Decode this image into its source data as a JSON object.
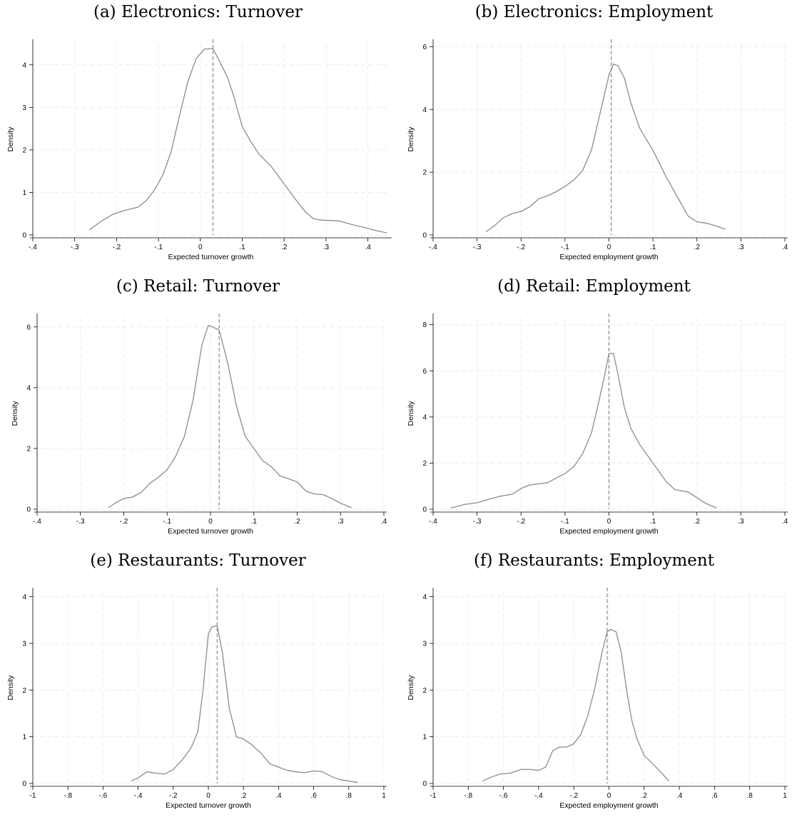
{
  "chart_data": [
    {
      "id": "a",
      "type": "line",
      "title": "(a) Electronics: Turnover",
      "xlabel": "Expected turnover growth",
      "ylabel": "Density",
      "xlim": [
        -0.4,
        0.45
      ],
      "ylim": [
        0,
        4.5
      ],
      "xticks": [
        -0.4,
        -0.3,
        -0.2,
        -0.1,
        0,
        0.1,
        0.2,
        0.3,
        0.4
      ],
      "xticklabels": [
        "-.4",
        "-.3",
        "-.2",
        "-.1",
        "0",
        ".1",
        ".2",
        ".3",
        ".4"
      ],
      "yticks": [
        0,
        1,
        2,
        3,
        4
      ],
      "yticklabels": [
        "0",
        "1",
        "2",
        "3",
        "4"
      ],
      "grid": true,
      "vline": 0.03,
      "series": [
        {
          "color": "#8c8c8c",
          "x": [
            -0.265,
            -0.24,
            -0.21,
            -0.18,
            -0.15,
            -0.13,
            -0.11,
            -0.09,
            -0.07,
            -0.05,
            -0.03,
            -0.01,
            0.01,
            0.03,
            0.045,
            0.065,
            0.08,
            0.1,
            0.12,
            0.14,
            0.17,
            0.2,
            0.23,
            0.25,
            0.27,
            0.29,
            0.33,
            0.36,
            0.39,
            0.42,
            0.445
          ],
          "y": [
            0.12,
            0.3,
            0.48,
            0.58,
            0.65,
            0.8,
            1.05,
            1.4,
            1.95,
            2.8,
            3.6,
            4.15,
            4.37,
            4.38,
            4.1,
            3.7,
            3.25,
            2.55,
            2.2,
            1.9,
            1.6,
            1.2,
            0.8,
            0.55,
            0.38,
            0.35,
            0.33,
            0.25,
            0.18,
            0.1,
            0.05
          ]
        }
      ]
    },
    {
      "id": "b",
      "type": "line",
      "title": "(b) Electronics: Employment",
      "xlabel": "Expected employment growth",
      "ylabel": "Density",
      "xlim": [
        -0.4,
        0.4
      ],
      "ylim": [
        0,
        6.1
      ],
      "xticks": [
        -0.4,
        -0.3,
        -0.2,
        -0.1,
        0,
        0.1,
        0.2,
        0.3,
        0.4
      ],
      "xticklabels": [
        "-.4",
        "-.3",
        "-.2",
        "-.1",
        "0",
        ".1",
        ".2",
        ".3",
        ".4"
      ],
      "yticks": [
        0,
        2,
        4,
        6
      ],
      "yticklabels": [
        "0",
        "2",
        "4",
        "6"
      ],
      "grid": true,
      "vline": 0.005,
      "series": [
        {
          "color": "#8c8c8c",
          "x": [
            -0.28,
            -0.26,
            -0.24,
            -0.22,
            -0.2,
            -0.18,
            -0.16,
            -0.14,
            -0.12,
            -0.1,
            -0.08,
            -0.06,
            -0.04,
            -0.02,
            0.0,
            0.01,
            0.02,
            0.035,
            0.05,
            0.07,
            0.1,
            0.13,
            0.16,
            0.18,
            0.2,
            0.22,
            0.24,
            0.265
          ],
          "y": [
            0.1,
            0.3,
            0.55,
            0.68,
            0.75,
            0.9,
            1.15,
            1.25,
            1.38,
            1.55,
            1.75,
            2.05,
            2.7,
            3.9,
            5.1,
            5.45,
            5.4,
            5.0,
            4.2,
            3.4,
            2.7,
            1.85,
            1.1,
            0.6,
            0.42,
            0.38,
            0.3,
            0.18
          ]
        }
      ]
    },
    {
      "id": "c",
      "type": "line",
      "title": "(c) Retail: Turnover",
      "xlabel": "Expected turnover growth",
      "ylabel": "Density",
      "xlim": [
        -0.4,
        0.4
      ],
      "ylim": [
        0,
        6.3
      ],
      "xticks": [
        -0.4,
        -0.3,
        -0.2,
        -0.1,
        0,
        0.1,
        0.2,
        0.3,
        0.4
      ],
      "xticklabels": [
        "-.4",
        "-.3",
        "-.2",
        "-.1",
        "0",
        ".1",
        ".2",
        ".3",
        ".4"
      ],
      "yticks": [
        0,
        2,
        4,
        6
      ],
      "yticklabels": [
        "0",
        "2",
        "4",
        "6"
      ],
      "grid": true,
      "vline": 0.02,
      "series": [
        {
          "color": "#8c8c8c",
          "x": [
            -0.235,
            -0.22,
            -0.2,
            -0.18,
            -0.16,
            -0.14,
            -0.12,
            -0.1,
            -0.08,
            -0.06,
            -0.04,
            -0.02,
            -0.005,
            0.005,
            0.02,
            0.04,
            0.06,
            0.08,
            0.1,
            0.12,
            0.14,
            0.16,
            0.18,
            0.2,
            0.22,
            0.24,
            0.26,
            0.28,
            0.3,
            0.325
          ],
          "y": [
            0.05,
            0.2,
            0.35,
            0.4,
            0.55,
            0.85,
            1.05,
            1.3,
            1.75,
            2.4,
            3.6,
            5.4,
            6.05,
            6.0,
            5.9,
            4.8,
            3.4,
            2.4,
            2.0,
            1.6,
            1.4,
            1.1,
            1.0,
            0.9,
            0.6,
            0.5,
            0.48,
            0.35,
            0.2,
            0.05
          ]
        }
      ]
    },
    {
      "id": "d",
      "type": "line",
      "title": "(d) Retail: Employment",
      "xlabel": "Expected employment growth",
      "ylabel": "Density",
      "xlim": [
        -0.4,
        0.4
      ],
      "ylim": [
        0,
        8.3
      ],
      "xticks": [
        -0.4,
        -0.3,
        -0.2,
        -0.1,
        0,
        0.1,
        0.2,
        0.3,
        0.4
      ],
      "xticklabels": [
        "-.4",
        "-.3",
        "-.2",
        "-.1",
        "0",
        ".1",
        ".2",
        ".3",
        ".4"
      ],
      "yticks": [
        0,
        2,
        4,
        6,
        8
      ],
      "yticklabels": [
        "0",
        "2",
        "4",
        "6",
        "8"
      ],
      "grid": true,
      "vline": 0.0,
      "series": [
        {
          "color": "#8c8c8c",
          "x": [
            -0.36,
            -0.33,
            -0.3,
            -0.27,
            -0.25,
            -0.22,
            -0.2,
            -0.18,
            -0.16,
            -0.14,
            -0.12,
            -0.1,
            -0.08,
            -0.06,
            -0.04,
            -0.025,
            -0.01,
            0.0,
            0.01,
            0.02,
            0.035,
            0.05,
            0.07,
            0.1,
            0.13,
            0.15,
            0.18,
            0.2,
            0.22,
            0.245
          ],
          "y": [
            0.05,
            0.2,
            0.28,
            0.45,
            0.55,
            0.65,
            0.9,
            1.05,
            1.1,
            1.15,
            1.35,
            1.55,
            1.85,
            2.4,
            3.3,
            4.5,
            5.8,
            6.75,
            6.75,
            5.9,
            4.4,
            3.5,
            2.8,
            2.0,
            1.2,
            0.85,
            0.75,
            0.5,
            0.25,
            0.05
          ]
        }
      ]
    },
    {
      "id": "e",
      "type": "line",
      "title": "(e) Restaurants: Turnover",
      "xlabel": "Expected turnover growth",
      "ylabel": "Density",
      "xlim": [
        -1,
        1
      ],
      "ylim": [
        0,
        4.1
      ],
      "xticks": [
        -1,
        -0.8,
        -0.6,
        -0.4,
        -0.2,
        0,
        0.2,
        0.4,
        0.6,
        0.8,
        1
      ],
      "xticklabels": [
        "-1",
        "-.8",
        "-.6",
        "-.4",
        "-.2",
        "0",
        ".2",
        ".4",
        ".6",
        ".8",
        "1"
      ],
      "yticks": [
        0,
        1,
        2,
        3,
        4
      ],
      "yticklabels": [
        "0",
        "1",
        "2",
        "3",
        "4"
      ],
      "grid": true,
      "vline": 0.05,
      "series": [
        {
          "color": "#8c8c8c",
          "x": [
            -0.44,
            -0.4,
            -0.35,
            -0.3,
            -0.25,
            -0.2,
            -0.15,
            -0.1,
            -0.06,
            -0.03,
            0.0,
            0.02,
            0.05,
            0.08,
            0.12,
            0.16,
            0.2,
            0.24,
            0.3,
            0.35,
            0.4,
            0.45,
            0.5,
            0.55,
            0.6,
            0.65,
            0.7,
            0.75,
            0.8,
            0.85
          ],
          "y": [
            0.05,
            0.12,
            0.25,
            0.22,
            0.2,
            0.3,
            0.5,
            0.75,
            1.1,
            2.0,
            3.2,
            3.35,
            3.38,
            2.8,
            1.6,
            1.0,
            0.95,
            0.85,
            0.65,
            0.42,
            0.35,
            0.28,
            0.25,
            0.23,
            0.27,
            0.25,
            0.15,
            0.08,
            0.05,
            0.02
          ]
        }
      ]
    },
    {
      "id": "f",
      "type": "line",
      "title": "(f) Restaurants: Employment",
      "xlabel": "Expected employment growth",
      "ylabel": "Density",
      "xlim": [
        -1,
        1
      ],
      "ylim": [
        0,
        4.1
      ],
      "xticks": [
        -1,
        -0.8,
        -0.6,
        -0.4,
        -0.2,
        0,
        0.2,
        0.4,
        0.6,
        0.8,
        1
      ],
      "xticklabels": [
        "-1",
        "-.8",
        "-.6",
        "-.4",
        "-.2",
        "0",
        ".2",
        ".4",
        ".6",
        ".8",
        "1"
      ],
      "yticks": [
        0,
        1,
        2,
        3,
        4
      ],
      "yticklabels": [
        "0",
        "1",
        "2",
        "3",
        "4"
      ],
      "grid": true,
      "vline": -0.01,
      "series": [
        {
          "color": "#8c8c8c",
          "x": [
            -0.72,
            -0.68,
            -0.62,
            -0.56,
            -0.5,
            -0.45,
            -0.4,
            -0.36,
            -0.32,
            -0.28,
            -0.24,
            -0.2,
            -0.16,
            -0.12,
            -0.08,
            -0.04,
            -0.01,
            0.01,
            0.04,
            0.07,
            0.1,
            0.13,
            0.16,
            0.2,
            0.24,
            0.28,
            0.31,
            0.34
          ],
          "y": [
            0.05,
            0.12,
            0.2,
            0.22,
            0.3,
            0.3,
            0.28,
            0.35,
            0.7,
            0.78,
            0.78,
            0.85,
            1.05,
            1.45,
            2.05,
            2.8,
            3.25,
            3.3,
            3.25,
            2.8,
            2.0,
            1.35,
            0.95,
            0.6,
            0.45,
            0.3,
            0.18,
            0.05
          ]
        }
      ]
    }
  ]
}
